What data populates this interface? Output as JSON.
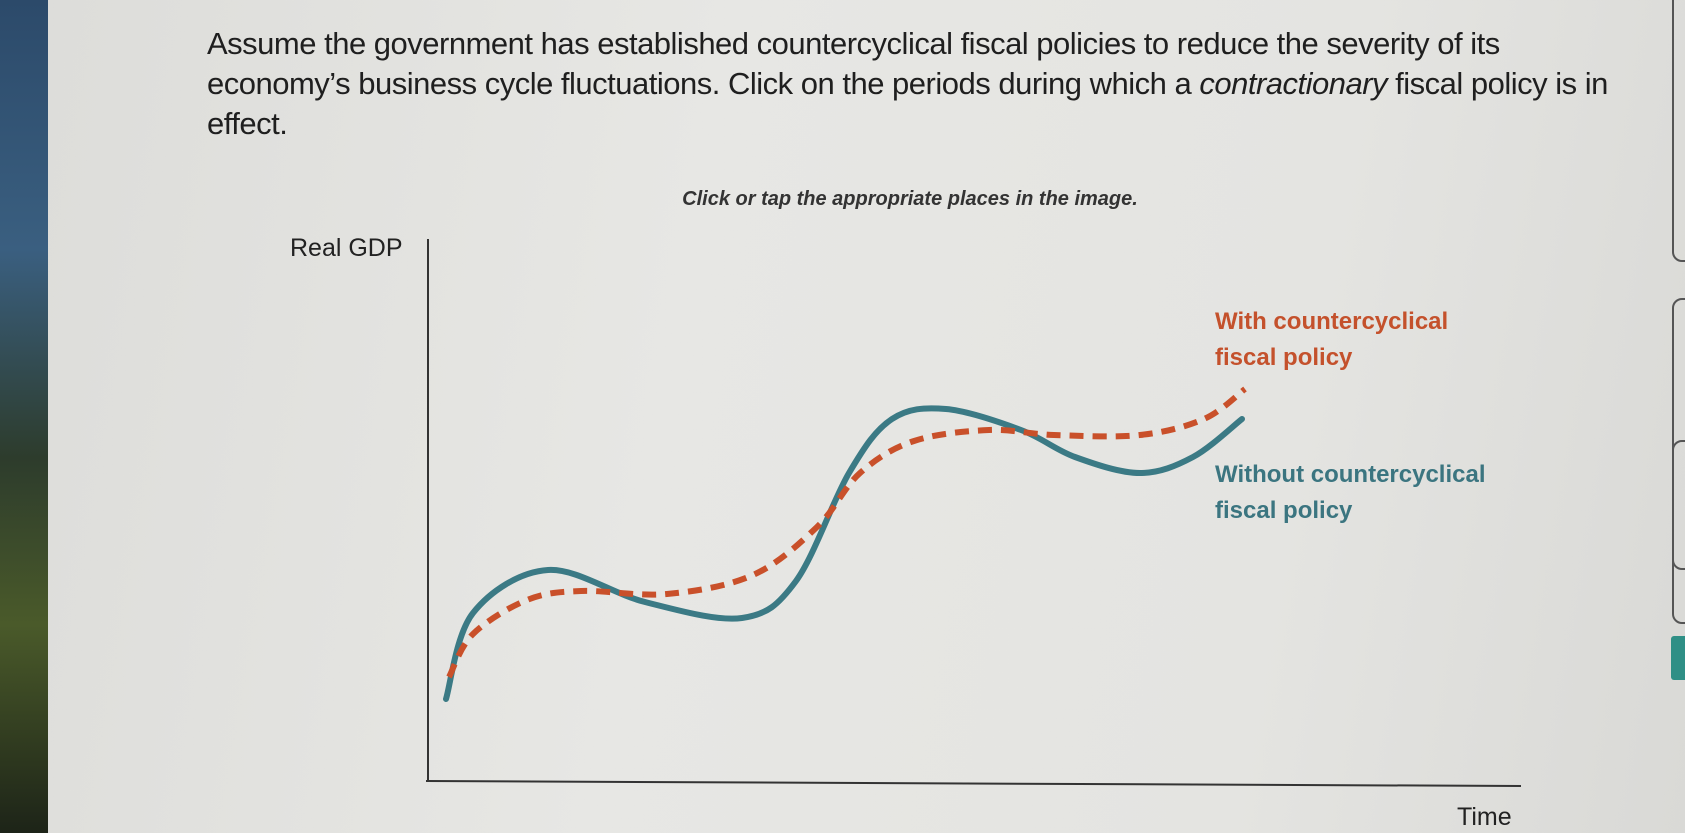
{
  "question": {
    "text_before": "Assume the government has established countercyclical fiscal policies to reduce the severity of its economy’s business cycle fluctuations. Click on the periods during which a ",
    "emphasis": "contractionary",
    "text_after": " fiscal policy is in effect."
  },
  "instruction": "Click or tap the appropriate places in the image.",
  "diagram": {
    "y_axis_label": "Real GDP",
    "x_axis_label": "Time",
    "with_policy_label": "With countercyclical fiscal policy",
    "without_policy_label": "Without countercyclical fiscal policy",
    "colors": {
      "with_policy": "#c9502a",
      "without_policy": "#3b7a85",
      "axes": "#333333"
    }
  }
}
